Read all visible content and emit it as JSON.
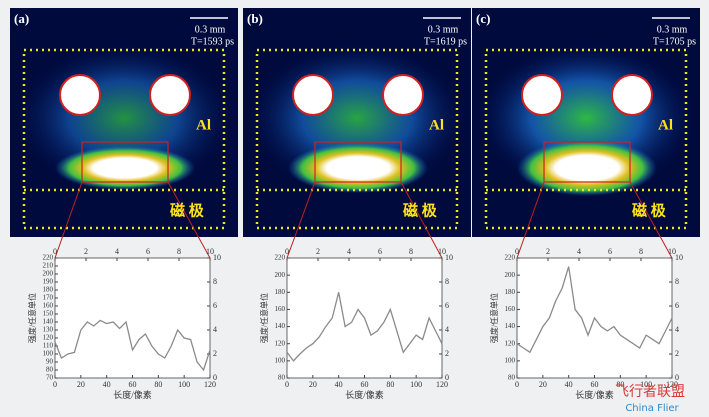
{
  "panels": [
    {
      "label": "(a)",
      "scale": "0.3 mm",
      "time": "T=1593 ps",
      "material": "Al",
      "electrode": "磁 极"
    },
    {
      "label": "(b)",
      "scale": "0.3 mm",
      "time": "T=1619 ps",
      "material": "Al",
      "electrode": "磁 极"
    },
    {
      "label": "(c)",
      "scale": "0.3 mm",
      "time": "T=1705 ps",
      "material": "Al",
      "electrode": "磁 极"
    }
  ],
  "watermark": "飞行者联盟",
  "watermark_sub": "China Flier",
  "chart_data": [
    {
      "type": "line",
      "xlabel": "长度/像素",
      "ylabel": "强度/任意单位",
      "color": "#8a8a8a",
      "x": [
        0,
        5,
        10,
        15,
        20,
        25,
        30,
        35,
        40,
        45,
        50,
        55,
        60,
        65,
        70,
        75,
        80,
        85,
        90,
        95,
        100,
        105,
        110,
        115,
        120
      ],
      "values": [
        115,
        95,
        100,
        102,
        130,
        140,
        135,
        142,
        138,
        140,
        132,
        140,
        105,
        118,
        125,
        110,
        100,
        95,
        110,
        130,
        120,
        118,
        90,
        80,
        105
      ],
      "xlim": [
        0,
        120
      ],
      "xticks": [
        0,
        20,
        40,
        60,
        80,
        100,
        120
      ],
      "ylim": [
        70,
        220
      ],
      "yticks": [
        70,
        80,
        90,
        100,
        110,
        120,
        130,
        140,
        150,
        160,
        170,
        180,
        190,
        200,
        210,
        220
      ],
      "x2lim": [
        0,
        10
      ],
      "x2ticks": [
        0,
        2,
        4,
        6,
        8,
        10
      ],
      "y2lim": [
        0,
        10
      ],
      "y2ticks": [
        0,
        2,
        4,
        6,
        8,
        10
      ]
    },
    {
      "type": "line",
      "xlabel": "长度/像素",
      "ylabel": "强度/任意单位",
      "color": "#8a8a8a",
      "x": [
        0,
        5,
        10,
        15,
        20,
        25,
        30,
        35,
        40,
        45,
        50,
        55,
        60,
        65,
        70,
        75,
        80,
        85,
        90,
        95,
        100,
        105,
        110,
        115,
        120
      ],
      "values": [
        110,
        100,
        108,
        115,
        120,
        128,
        140,
        150,
        180,
        140,
        145,
        160,
        150,
        130,
        135,
        145,
        160,
        135,
        110,
        120,
        130,
        125,
        150,
        135,
        120
      ],
      "xlim": [
        0,
        120
      ],
      "xticks": [
        0,
        20,
        40,
        60,
        80,
        100,
        120
      ],
      "ylim": [
        80,
        220
      ],
      "yticks": [
        80,
        100,
        120,
        140,
        160,
        180,
        200,
        220
      ],
      "x2lim": [
        0,
        10
      ],
      "x2ticks": [
        0,
        2,
        4,
        6,
        8,
        10
      ],
      "y2lim": [
        0,
        10
      ],
      "y2ticks": [
        0,
        2,
        4,
        6,
        8,
        10
      ]
    },
    {
      "type": "line",
      "xlabel": "长度/像素",
      "ylabel": "强度/任意单位",
      "color": "#8a8a8a",
      "x": [
        0,
        5,
        10,
        15,
        20,
        25,
        30,
        35,
        40,
        45,
        50,
        55,
        60,
        65,
        70,
        75,
        80,
        85,
        90,
        95,
        100,
        105,
        110,
        115,
        120
      ],
      "values": [
        120,
        115,
        110,
        125,
        140,
        150,
        170,
        185,
        210,
        160,
        150,
        130,
        150,
        140,
        135,
        140,
        130,
        125,
        120,
        115,
        130,
        125,
        120,
        135,
        150
      ],
      "xlim": [
        0,
        120
      ],
      "xticks": [
        0,
        20,
        40,
        60,
        80,
        100,
        120
      ],
      "ylim": [
        80,
        220
      ],
      "yticks": [
        80,
        100,
        120,
        140,
        160,
        180,
        200,
        220
      ],
      "x2lim": [
        0,
        10
      ],
      "x2ticks": [
        0,
        2,
        4,
        6,
        8,
        10
      ],
      "y2lim": [
        0,
        10
      ],
      "y2ticks": [
        0,
        2,
        4,
        6,
        8,
        10
      ]
    }
  ]
}
